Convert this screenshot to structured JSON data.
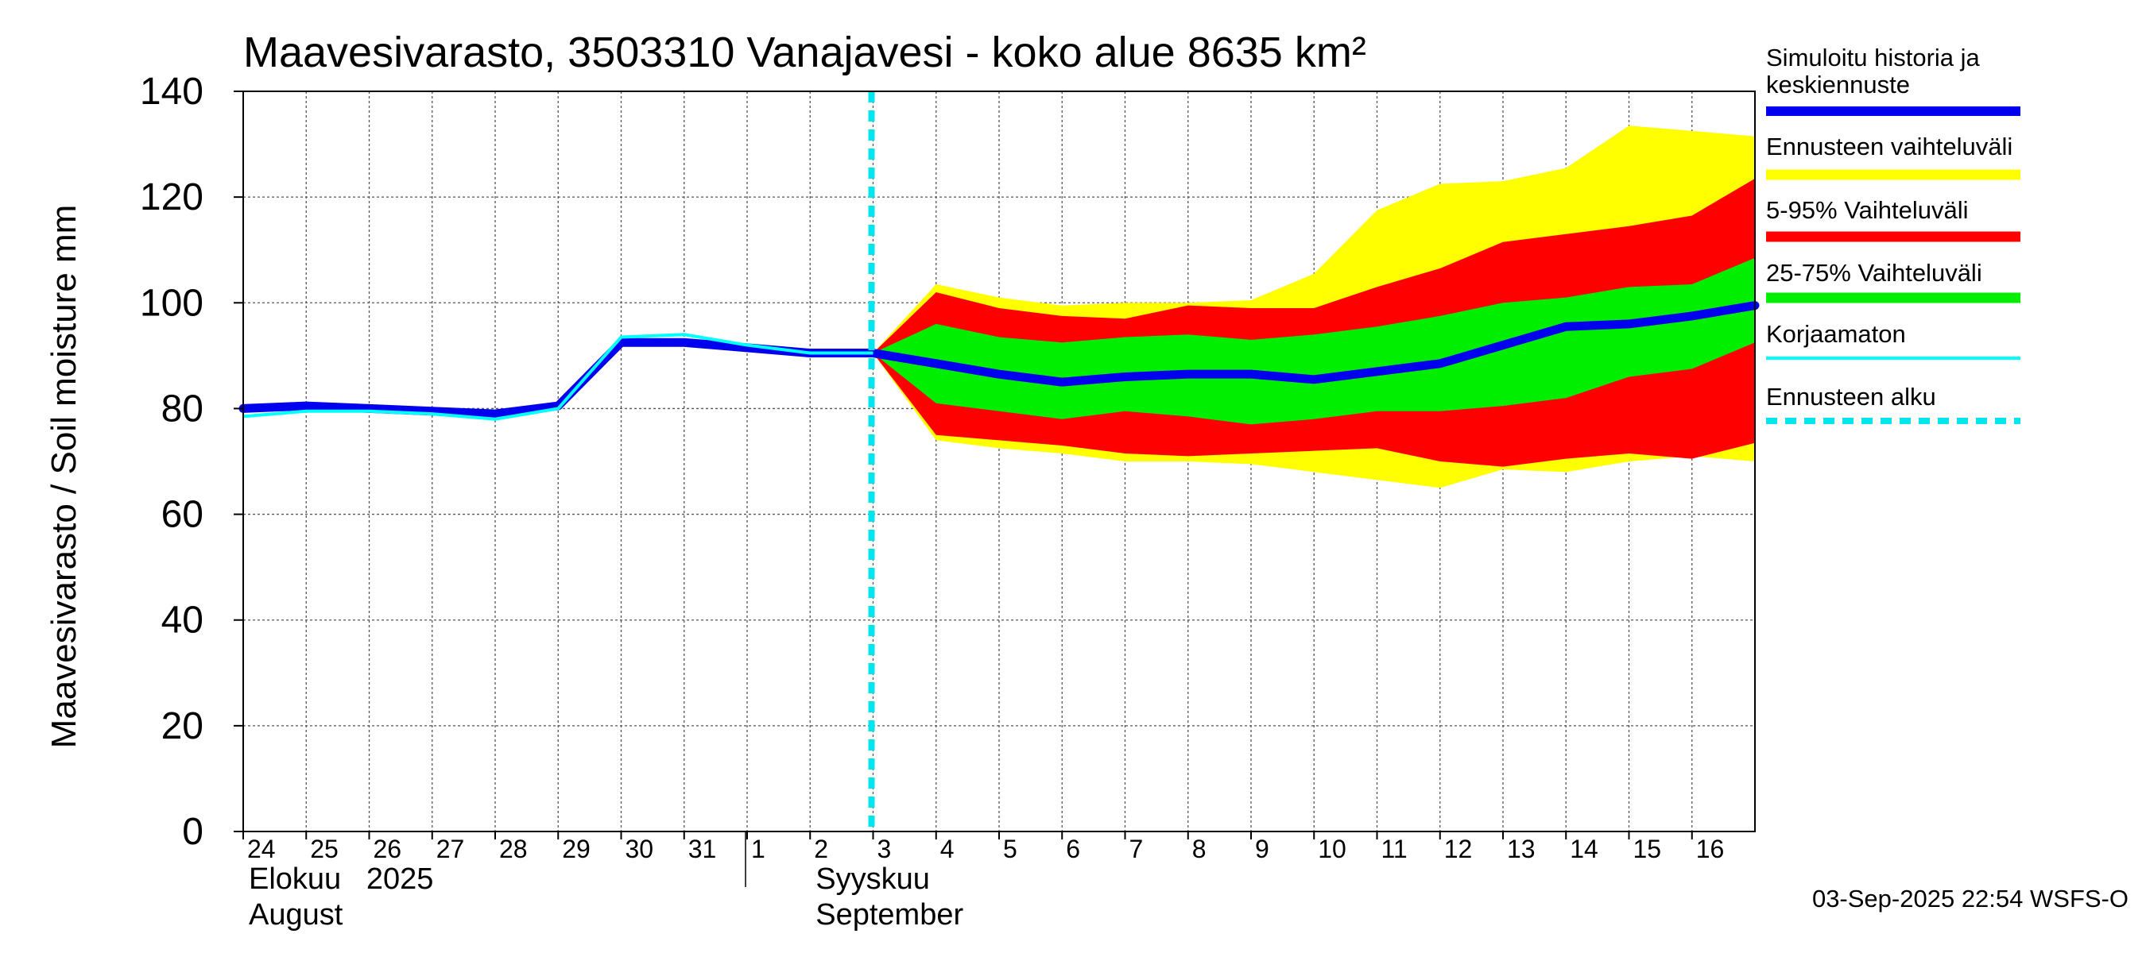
{
  "colors": {
    "sim": "#0000ee",
    "band_full": "#ffff00",
    "band_5_95": "#ff0000",
    "band_25_75": "#00ee00",
    "uncorrected": "#00ffff",
    "forecast_start": "#00e5ee",
    "grid": "#555555"
  },
  "chart_data": {
    "type": "area",
    "title": "Maavesivarasto, 3503310 Vanajavesi - koko alue 8635 km²",
    "ylabel": "Maavesivarasto / Soil moisture   mm",
    "ylim": [
      0,
      140
    ],
    "yticks": [
      0,
      20,
      40,
      60,
      80,
      100,
      120,
      140
    ],
    "xlim": [
      0,
      24
    ],
    "day_labels": [
      "24",
      "25",
      "26",
      "27",
      "28",
      "29",
      "30",
      "31",
      "1",
      "2",
      "3",
      "4",
      "5",
      "6",
      "7",
      "8",
      "9",
      "10",
      "11",
      "12",
      "13",
      "14",
      "15",
      "16"
    ],
    "month_labels": [
      {
        "line1": "Elokuu   2025",
        "line2": "August",
        "x": 0
      },
      {
        "line1": "Syyskuu",
        "line2": "September",
        "x": 9
      }
    ],
    "month_divider_x": 8,
    "forecast_start_x": 10,
    "series": [
      {
        "name": "Ennusteen vaihteluväli",
        "kind": "band",
        "x": [
          10,
          11,
          12,
          13,
          14,
          15,
          16,
          17,
          18,
          19,
          20,
          21,
          22,
          23,
          24
        ],
        "upper": [
          90.5,
          103.5,
          101,
          99.5,
          100,
          100,
          100.5,
          105.5,
          117.5,
          122.5,
          123,
          125.5,
          133.5,
          132.5,
          131.5
        ],
        "lower": [
          90.5,
          74,
          72.5,
          71.5,
          70,
          70,
          69.5,
          68,
          66.5,
          65,
          68.5,
          68,
          70,
          71,
          70
        ]
      },
      {
        "name": "5-95% Vaihteluväli",
        "kind": "band",
        "x": [
          10,
          11,
          12,
          13,
          14,
          15,
          16,
          17,
          18,
          19,
          20,
          21,
          22,
          23,
          24
        ],
        "upper": [
          90.5,
          102,
          99,
          97.5,
          97,
          99.5,
          99,
          99,
          103,
          106.5,
          111.5,
          113,
          114.5,
          116.5,
          123.5
        ],
        "lower": [
          90.5,
          75,
          74,
          73,
          71.5,
          71,
          71.5,
          72,
          72.5,
          70,
          69,
          70.5,
          71.5,
          70.5,
          73.5
        ]
      },
      {
        "name": "25-75% Vaihteluväli",
        "kind": "band",
        "x": [
          10,
          11,
          12,
          13,
          14,
          15,
          16,
          17,
          18,
          19,
          20,
          21,
          22,
          23,
          24
        ],
        "upper": [
          90.5,
          96,
          93.5,
          92.5,
          93.5,
          94,
          93,
          94,
          95.5,
          97.5,
          100,
          101,
          103,
          103.5,
          108.5
        ],
        "lower": [
          90.5,
          81,
          79.5,
          78,
          79.5,
          78.5,
          77,
          78,
          79.5,
          79.5,
          80.5,
          82,
          86,
          87.5,
          92.5
        ]
      },
      {
        "name": "Simuloitu historia ja keskiennuste",
        "kind": "line",
        "x": [
          0,
          1,
          2,
          3,
          4,
          5,
          6,
          7,
          8,
          9,
          10,
          11,
          12,
          13,
          14,
          15,
          16,
          17,
          18,
          19,
          20,
          21,
          22,
          23,
          24
        ],
        "values": [
          80,
          80.5,
          80,
          79.5,
          79,
          80.5,
          92.5,
          92.5,
          91.5,
          90.5,
          90.5,
          88.5,
          86.5,
          85,
          86,
          86.5,
          86.5,
          85.5,
          87,
          88.5,
          92,
          95.5,
          96,
          97.5,
          99.5
        ]
      },
      {
        "name": "Korjaamaton",
        "kind": "line",
        "x": [
          0,
          1,
          2,
          3,
          4,
          5,
          6,
          7,
          8,
          9,
          10
        ],
        "values": [
          78.5,
          79.5,
          79.5,
          79,
          78,
          80,
          93.5,
          94,
          92,
          90.5,
          90.5
        ]
      }
    ],
    "legend": [
      {
        "label": "Simuloitu historia ja keskiennuste",
        "lines": [
          "Simuloitu historia ja",
          "keskiennuste"
        ],
        "style": "sim"
      },
      {
        "label": "Ennusteen vaihteluväli",
        "lines": [
          "Ennusteen vaihteluväli"
        ],
        "style": "band_full"
      },
      {
        "label": "5-95% Vaihteluväli",
        "lines": [
          "5-95% Vaihteluväli"
        ],
        "style": "band_5_95"
      },
      {
        "label": "25-75% Vaihteluväli",
        "lines": [
          "25-75% Vaihteluväli"
        ],
        "style": "band_25_75"
      },
      {
        "label": "Korjaamaton",
        "lines": [
          "Korjaamaton"
        ],
        "style": "uncorrected"
      },
      {
        "label": "Ennusteen alku",
        "lines": [
          "Ennusteen alku"
        ],
        "style": "forecast_start"
      }
    ],
    "footer": "03-Sep-2025 22:54 WSFS-O"
  }
}
